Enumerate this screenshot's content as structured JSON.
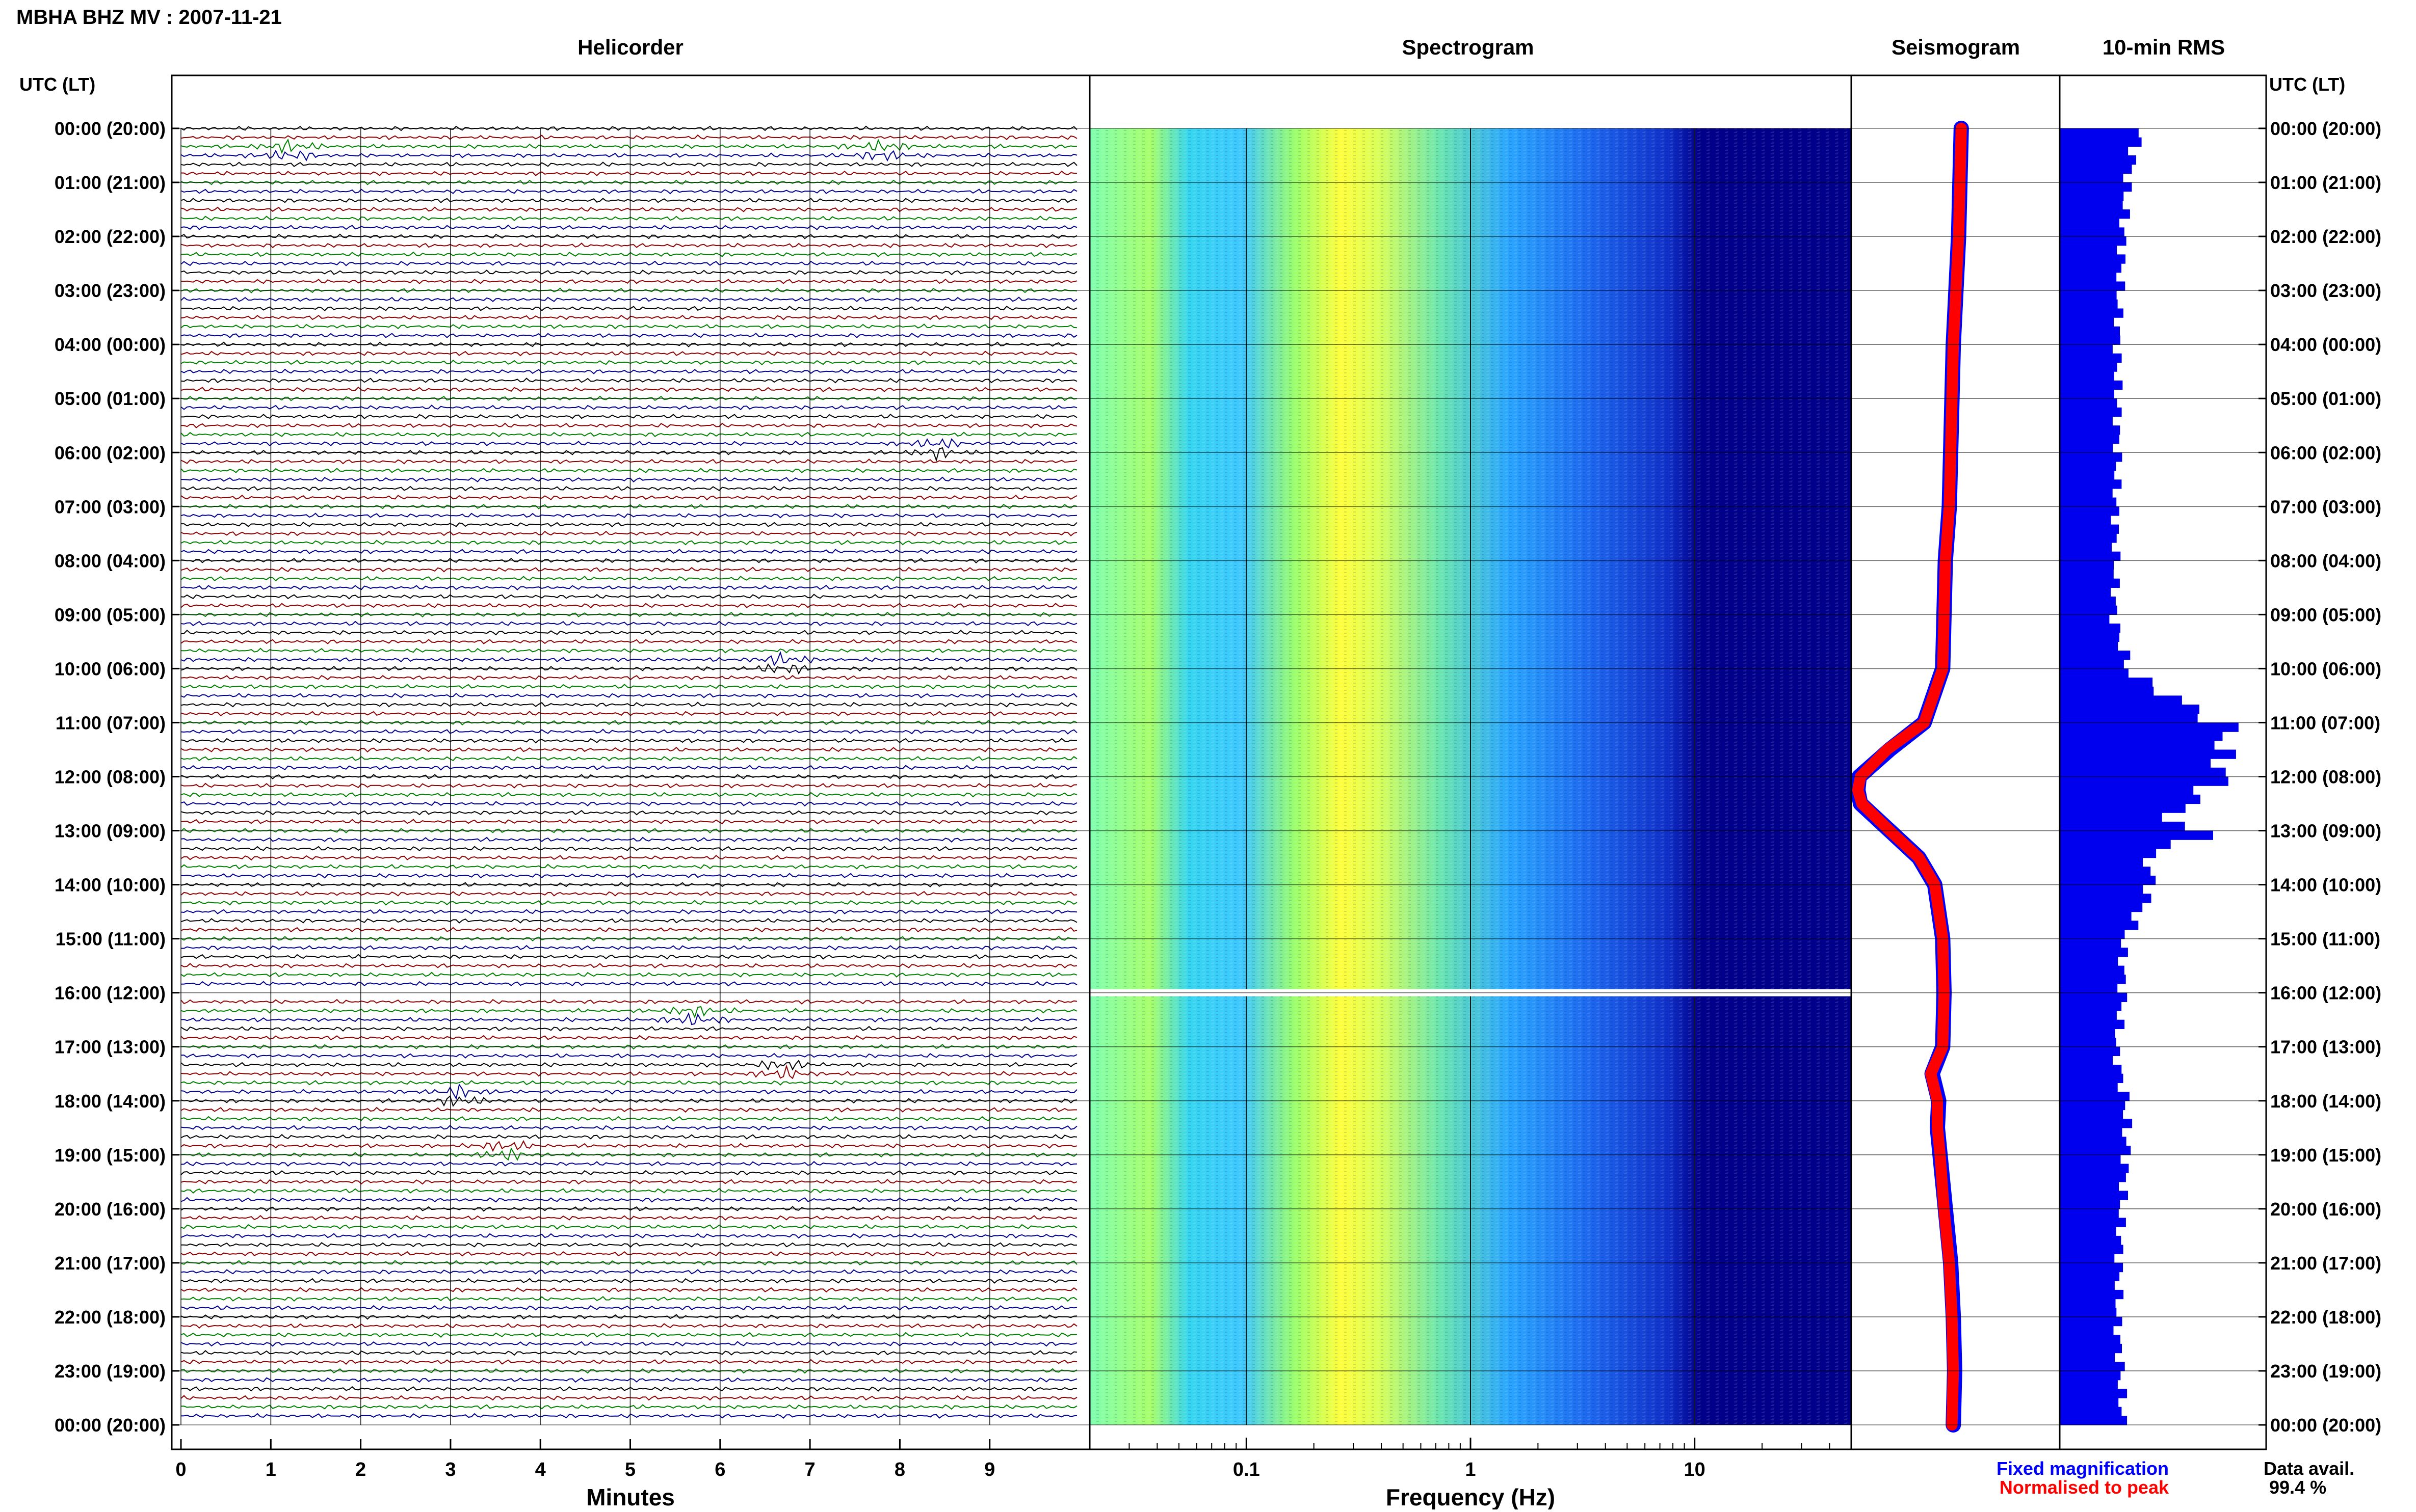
{
  "header": {
    "station_title": "MBHA BHZ MV : 2007-11-21"
  },
  "panels": {
    "helicorder": "Helicorder",
    "spectrogram": "Spectrogram",
    "seismogram": "Seismogram",
    "rms": "10-min RMS"
  },
  "axes": {
    "time_label_left": "UTC (LT)",
    "time_label_right": "UTC (LT)",
    "helicorder_xlabel": "Minutes",
    "spectrogram_xlabel": "Frequency (Hz)"
  },
  "legend": {
    "fixed": "Fixed magnification",
    "normalised": "Normalised to peak",
    "fixed_color": "#0000ff",
    "normalised_color": "#ff0000"
  },
  "data_availability": {
    "label": "Data avail.",
    "value": "99.4 %"
  },
  "colors": {
    "trace_cycle": [
      "#000000",
      "#8b0000",
      "#008000",
      "#00008b"
    ],
    "rms_bar": "#0000ee",
    "spectrogram_low": "#00008b",
    "spectrogram_high": "#ffff3c"
  },
  "chart_data": [
    {
      "type": "line",
      "title": "Helicorder",
      "xlabel": "Minutes",
      "xlim": [
        0,
        10
      ],
      "x_ticks": [
        "0",
        "1",
        "2",
        "3",
        "4",
        "5",
        "6",
        "7",
        "8",
        "9"
      ],
      "rows_per_day": 144,
      "row_minutes": 10,
      "y_ticks": [
        "00:00 (20:00)",
        "01:00 (21:00)",
        "02:00 (22:00)",
        "03:00 (23:00)",
        "04:00 (00:00)",
        "05:00 (01:00)",
        "06:00 (02:00)",
        "07:00 (03:00)",
        "08:00 (04:00)",
        "09:00 (05:00)",
        "10:00 (06:00)",
        "11:00 (07:00)",
        "12:00 (08:00)",
        "13:00 (09:00)",
        "14:00 (10:00)",
        "15:00 (11:00)",
        "16:00 (12:00)",
        "17:00 (13:00)",
        "18:00 (14:00)",
        "19:00 (15:00)",
        "20:00 (16:00)",
        "21:00 (17:00)",
        "22:00 (18:00)",
        "23:00 (19:00)",
        "00:00 (20:00)"
      ],
      "data_gap_hour": 16,
      "events": [
        {
          "hour": 0.5,
          "minute": 1.2
        },
        {
          "hour": 0.5,
          "minute": 7.8
        },
        {
          "hour": 6.1,
          "minute": 8.4
        },
        {
          "hour": 10.1,
          "minute": 6.7
        },
        {
          "hour": 16.55,
          "minute": 5.7
        },
        {
          "hour": 17.5,
          "minute": 6.7
        },
        {
          "hour": 17.9,
          "minute": 3.1
        },
        {
          "hour": 19.0,
          "minute": 3.6
        }
      ]
    },
    {
      "type": "heatmap",
      "title": "Spectrogram",
      "xlabel": "Frequency (Hz)",
      "x_scale": "log",
      "xlim": [
        0.02,
        50
      ],
      "x_ticks": [
        "0.1",
        "1",
        "10"
      ],
      "peak_frequency_hz": 0.3,
      "data_gap_hour": 16
    },
    {
      "type": "line",
      "title": "Seismogram",
      "x": [
        0,
        1,
        2,
        3,
        4,
        5,
        6,
        7,
        8,
        9,
        10,
        11,
        11.5,
        12,
        12.25,
        12.5,
        13,
        13.5,
        14,
        15,
        16,
        17,
        17.5,
        18,
        18.5,
        19,
        20,
        21,
        22,
        23,
        24
      ],
      "series": [
        {
          "name": "Fixed magnification",
          "values": [
            0.78,
            0.77,
            0.76,
            0.74,
            0.72,
            0.71,
            0.7,
            0.69,
            0.66,
            0.65,
            0.64,
            0.5,
            0.24,
            0.01,
            0.0,
            0.02,
            0.24,
            0.46,
            0.58,
            0.64,
            0.65,
            0.64,
            0.56,
            0.61,
            0.6,
            0.62,
            0.66,
            0.7,
            0.72,
            0.73,
            0.72
          ]
        },
        {
          "name": "Normalised to peak",
          "values": [
            0.78,
            0.77,
            0.76,
            0.74,
            0.72,
            0.71,
            0.7,
            0.69,
            0.66,
            0.65,
            0.64,
            0.5,
            0.22,
            0.02,
            0.0,
            0.03,
            0.24,
            0.46,
            0.58,
            0.64,
            0.65,
            0.64,
            0.55,
            0.6,
            0.6,
            0.62,
            0.65,
            0.69,
            0.71,
            0.72,
            0.71
          ]
        }
      ]
    },
    {
      "type": "bar",
      "title": "10-min RMS",
      "bins_per_hour": 6,
      "hourly_values": [
        0.45,
        0.38,
        0.36,
        0.34,
        0.33,
        0.33,
        0.33,
        0.32,
        0.32,
        0.31,
        0.4,
        0.95,
        0.9,
        0.5,
        0.52,
        0.36,
        0.36,
        0.32,
        0.38,
        0.38,
        0.35,
        0.34,
        0.33,
        0.35,
        0.36
      ],
      "peaks": [
        {
          "hour": 11.9,
          "value": 1.0
        },
        {
          "hour": 13.0,
          "value": 0.9
        }
      ]
    }
  ]
}
